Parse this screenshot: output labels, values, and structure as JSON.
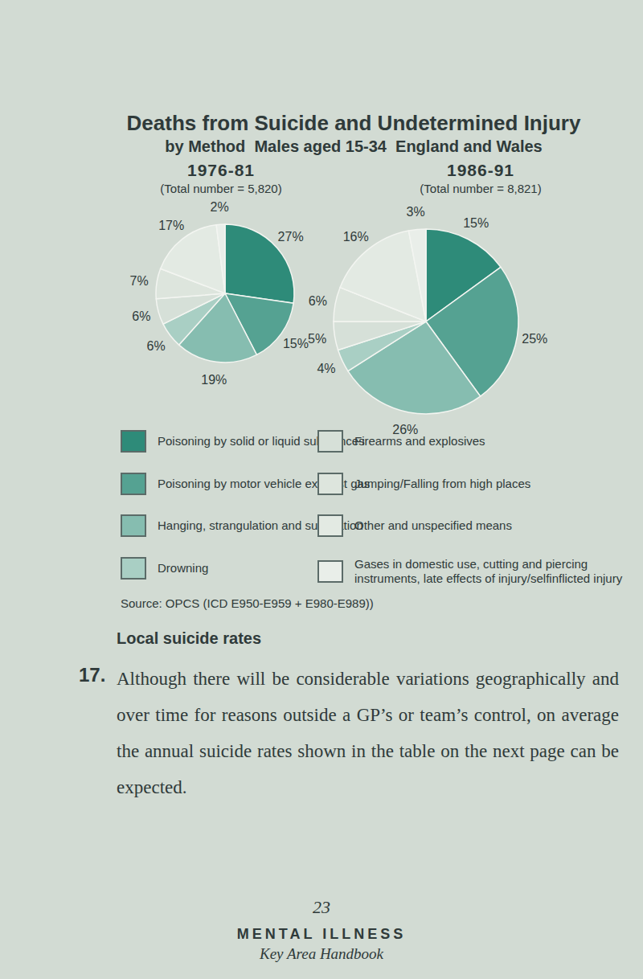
{
  "page": {
    "title": "Deaths from Suicide and Undetermined Injury",
    "subtitle": "by Method  Males aged 15-34  England and Wales",
    "source": "Source: OPCS (ICD E950-E959 + E980-E989))",
    "section_heading": "Local suicide rates",
    "paragraph_number": "17.",
    "paragraph": "Although there will be considerable variations geographically and over time for reasons outside a GP’s or team’s control, on average the annual suicide rates shown in the table on the next page can be expected.",
    "page_number": "23",
    "footer_title": "MENTAL ILLNESS",
    "footer_subtitle": "Key Area Handbook"
  },
  "chart_data": [
    {
      "type": "pie",
      "title": "1976-81",
      "subtitle": "(Total number = 5,820)",
      "categories": [
        "Poisoning by solid or liquid substances",
        "Poisoning by motor vehicle exhaust gas",
        "Hanging, strangulation and suffocation",
        "Drowning",
        "Firearms and explosives",
        "Jumping/Falling from high places",
        "Other and unspecified means",
        "Gases in domestic use, cutting and piercing instruments, late effects of injury/selfinflicted injury"
      ],
      "values": [
        27,
        15,
        19,
        6,
        6,
        7,
        17,
        2
      ],
      "value_labels": [
        "27%",
        "15%",
        "19%",
        "6%",
        "6%",
        "7%",
        "17%",
        "2%"
      ],
      "colors": [
        "#2e8b79",
        "#55a292",
        "#86bdb0",
        "#a9cfc4",
        "#d6e0d8",
        "#dde5dd",
        "#e3eae3",
        "#e9eee9"
      ],
      "data_labels": true
    },
    {
      "type": "pie",
      "title": "1986-91",
      "subtitle": "(Total number = 8,821)",
      "categories": [
        "Poisoning by solid or liquid substances",
        "Poisoning by motor vehicle exhaust gas",
        "Hanging, strangulation and suffocation",
        "Drowning",
        "Firearms and explosives",
        "Jumping/Falling from high places",
        "Other and unspecified means",
        "Gases in domestic use, cutting and piercing instruments, late effects of injury/selfinflicted injury"
      ],
      "values": [
        15,
        25,
        26,
        4,
        5,
        6,
        16,
        3
      ],
      "value_labels": [
        "15%",
        "25%",
        "26%",
        "4%",
        "5%",
        "6%",
        "16%",
        "3%"
      ],
      "colors": [
        "#2e8b79",
        "#55a292",
        "#86bdb0",
        "#a9cfc4",
        "#d6e0d8",
        "#dde5dd",
        "#e3eae3",
        "#e9eee9"
      ],
      "data_labels": true
    }
  ]
}
